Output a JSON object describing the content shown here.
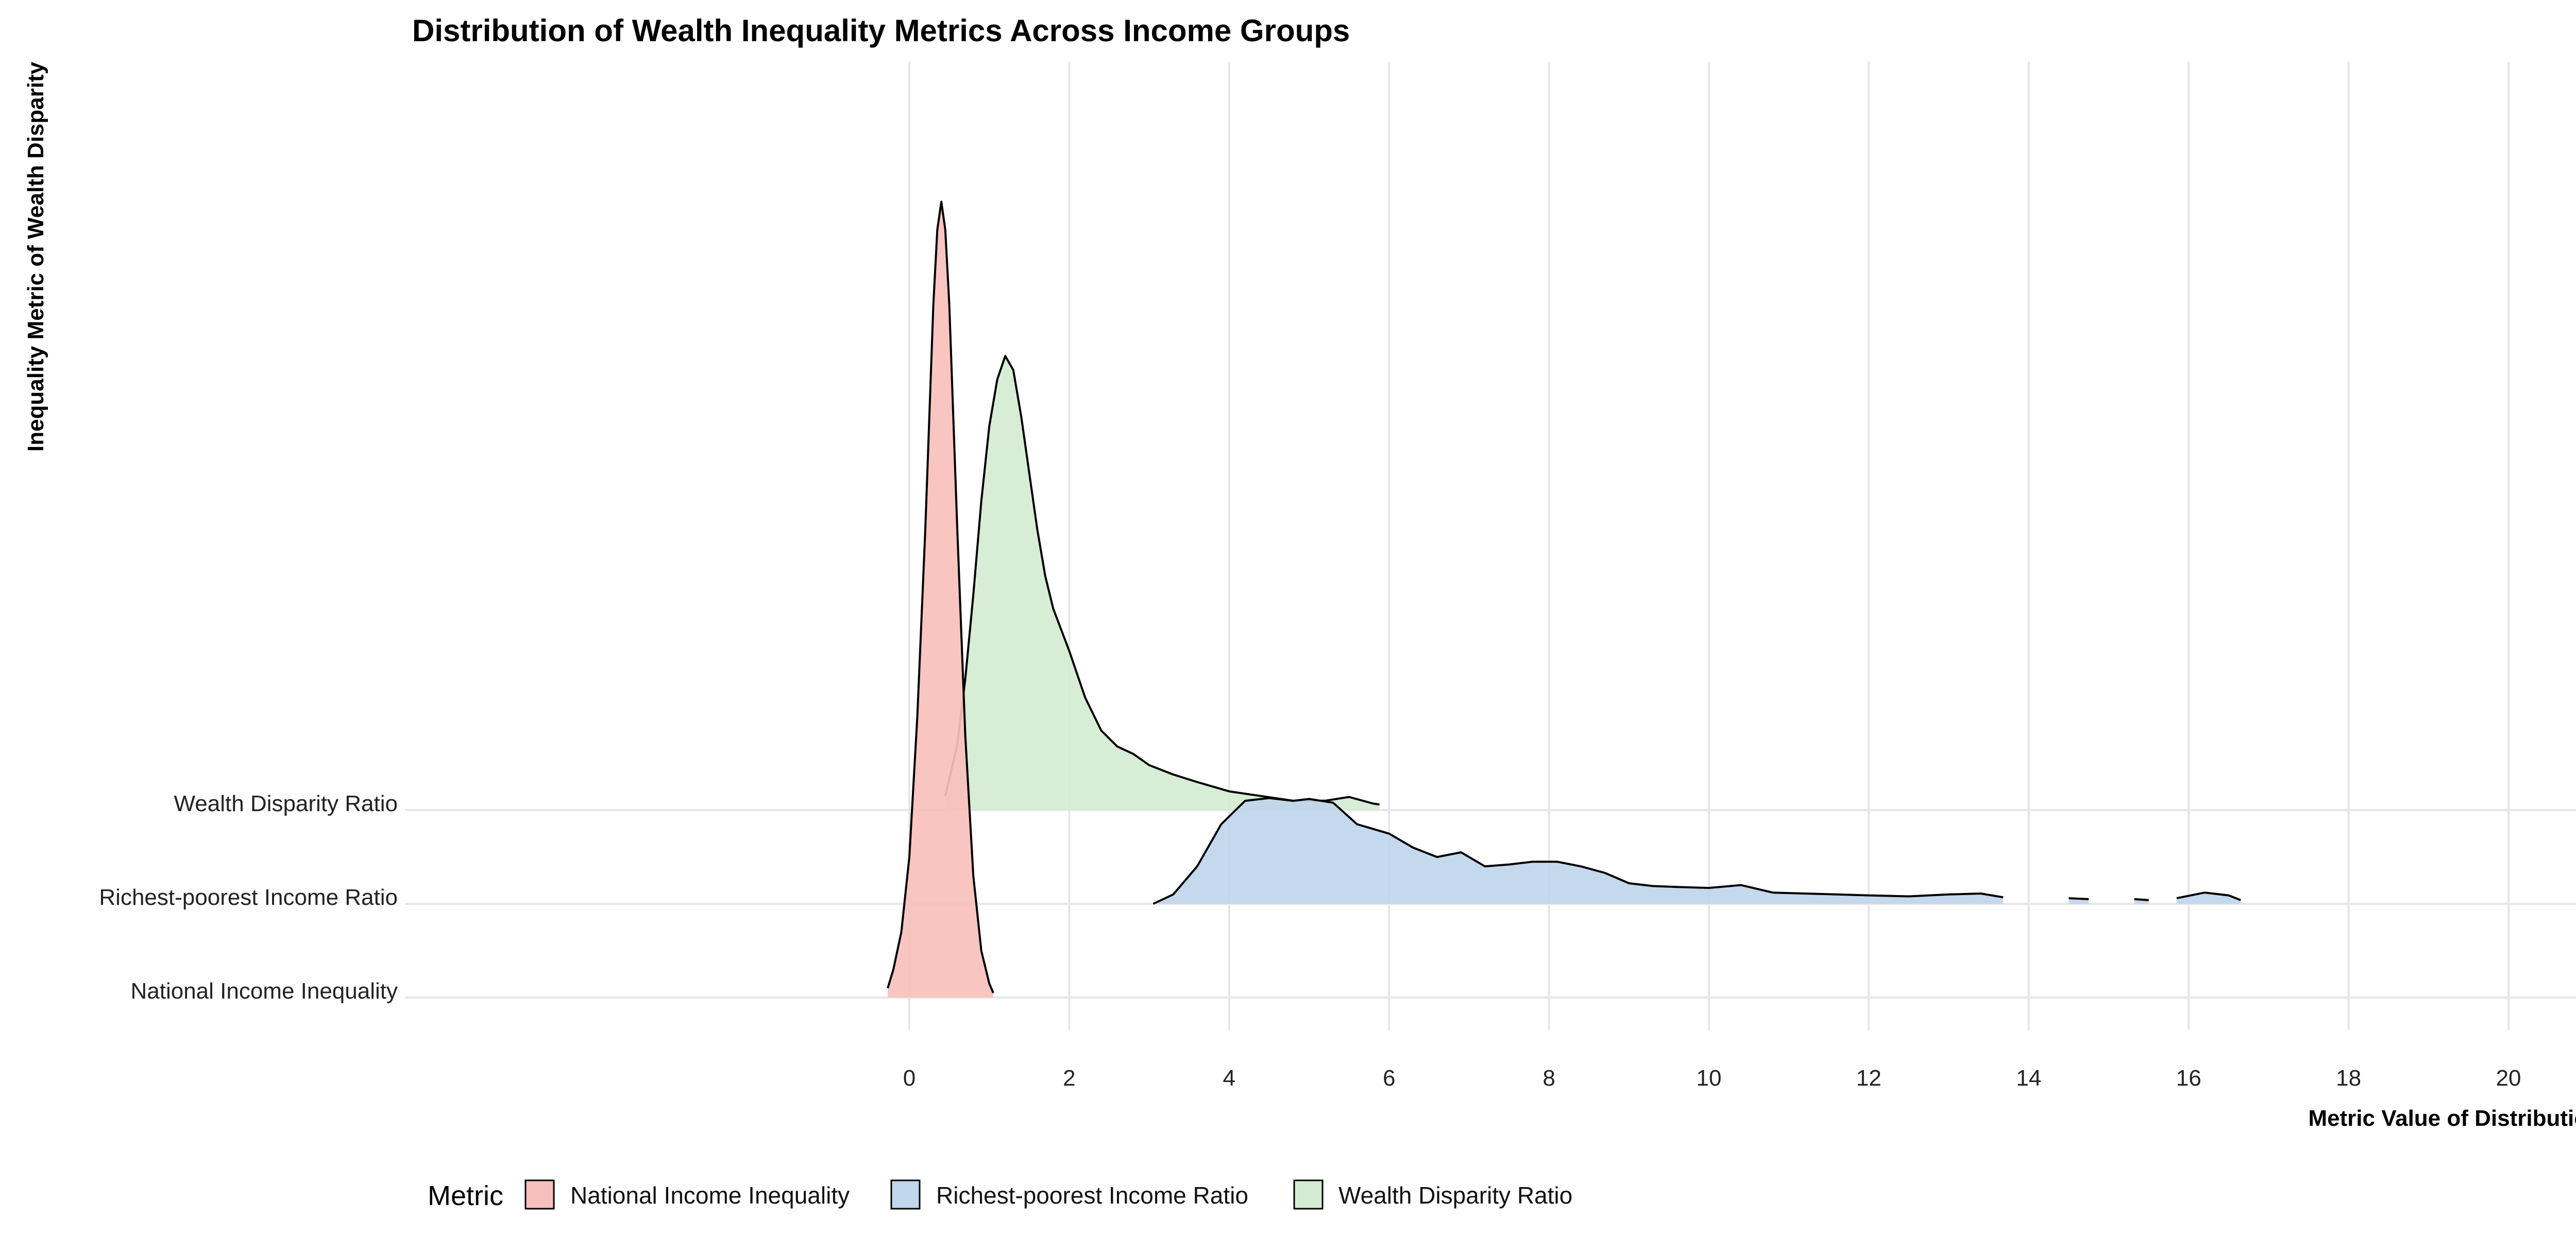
{
  "chart_data": {
    "type": "ridgeline",
    "title": "Distribution of Wealth Inequality Metrics Across Income Groups",
    "xlabel": "Metric Value of Distribution",
    "ylabel": "Inequality Metric of Wealth Disparity",
    "xlim": [
      -6.5,
      21.2
    ],
    "x_ticks": [
      0,
      2,
      4,
      6,
      8,
      10,
      12,
      14,
      16,
      18,
      20
    ],
    "categories": [
      "National Income Inequality",
      "Richest-poorest Income Ratio",
      "Wealth Disparity Ratio"
    ],
    "grid": true,
    "legend": {
      "title": "Metric",
      "position": "bottom"
    },
    "series": [
      {
        "name": "National Income Inequality",
        "color": "#F8C0BC",
        "x": [
          -0.27,
          -0.2,
          -0.1,
          0.0,
          0.1,
          0.2,
          0.3,
          0.35,
          0.4,
          0.45,
          0.5,
          0.6,
          0.7,
          0.8,
          0.9,
          1.0,
          1.05
        ],
        "density": [
          0.1,
          0.3,
          0.7,
          1.5,
          3.0,
          5.0,
          7.4,
          8.2,
          8.5,
          8.2,
          7.4,
          5.0,
          2.8,
          1.3,
          0.5,
          0.15,
          0.05
        ]
      },
      {
        "name": "Richest-poorest Income Ratio",
        "color": "#C0D6EA",
        "x": [
          3.05,
          3.3,
          3.6,
          3.9,
          4.2,
          4.5,
          4.8,
          5.0,
          5.3,
          5.6,
          5.8,
          6.0,
          6.3,
          6.6,
          6.9,
          7.2,
          7.5,
          7.8,
          8.1,
          8.4,
          8.7,
          9.0,
          9.3,
          9.6,
          10.0,
          10.4,
          10.8,
          11.2,
          11.6,
          12.0,
          12.5,
          13.0,
          13.4,
          13.68,
          14.5,
          14.75,
          15.32,
          15.5,
          15.85,
          16.2,
          16.5,
          16.65
        ],
        "density": [
          0.0,
          0.1,
          0.4,
          0.85,
          1.1,
          1.13,
          1.1,
          1.12,
          1.08,
          0.85,
          0.8,
          0.75,
          0.6,
          0.5,
          0.55,
          0.4,
          0.42,
          0.45,
          0.45,
          0.4,
          0.33,
          0.22,
          0.19,
          0.18,
          0.17,
          0.2,
          0.12,
          0.11,
          0.1,
          0.09,
          0.08,
          0.1,
          0.11,
          0.07,
          0.06,
          0.05,
          0.05,
          0.04,
          0.06,
          0.12,
          0.09,
          0.04
        ],
        "gaps_between": [
          [
            13.68,
            14.5
          ],
          [
            14.75,
            15.32
          ],
          [
            15.5,
            15.85
          ]
        ]
      },
      {
        "name": "Wealth Disparity Ratio",
        "color": "#D4ECD1",
        "x": [
          0.45,
          0.6,
          0.7,
          0.8,
          0.9,
          1.0,
          1.1,
          1.2,
          1.3,
          1.4,
          1.5,
          1.6,
          1.7,
          1.8,
          2.0,
          2.2,
          2.4,
          2.6,
          2.8,
          3.0,
          3.3,
          3.6,
          4.0,
          4.4,
          4.8,
          5.2,
          5.5,
          5.8,
          5.88
        ],
        "density": [
          0.15,
          0.7,
          1.4,
          2.3,
          3.3,
          4.1,
          4.6,
          4.85,
          4.7,
          4.2,
          3.6,
          3.0,
          2.5,
          2.15,
          1.7,
          1.2,
          0.85,
          0.68,
          0.6,
          0.48,
          0.38,
          0.3,
          0.2,
          0.15,
          0.1,
          0.1,
          0.14,
          0.07,
          0.06
        ]
      }
    ]
  }
}
